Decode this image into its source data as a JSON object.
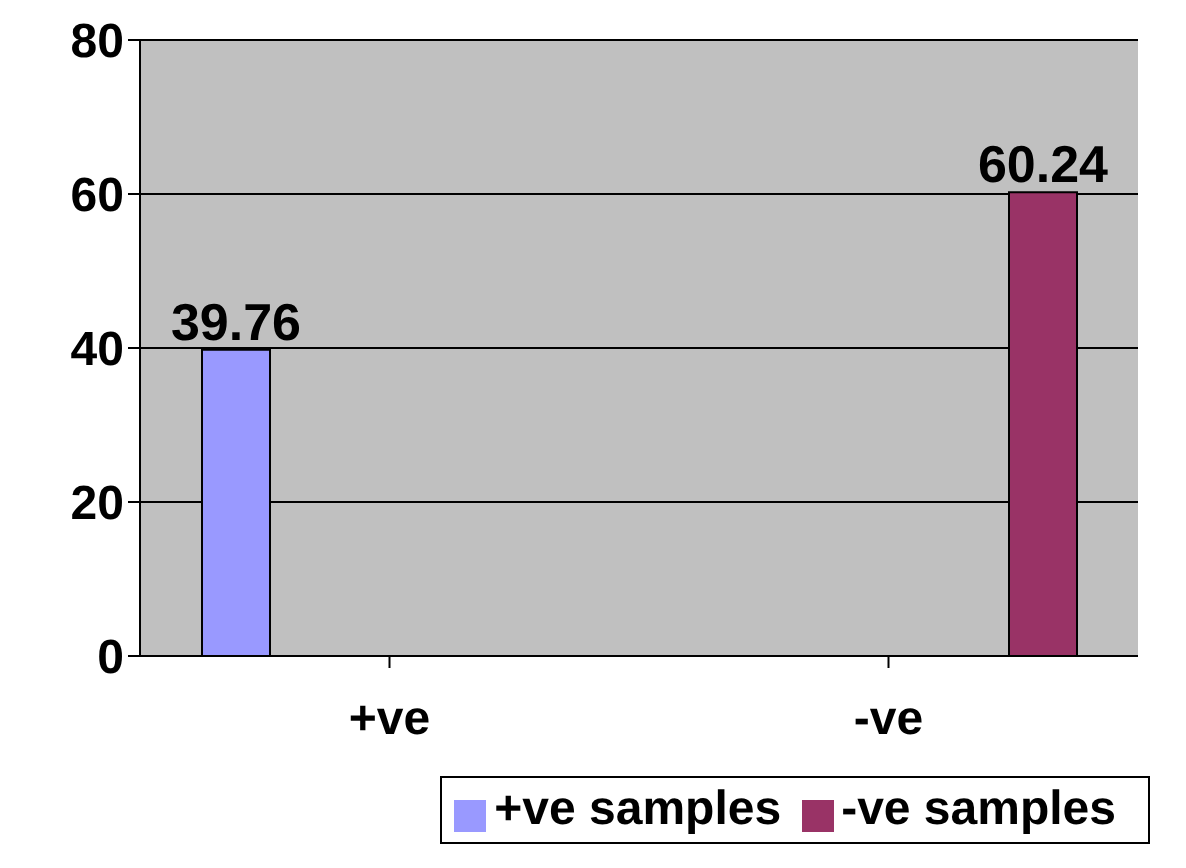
{
  "chart_data": {
    "type": "bar",
    "categories": [
      "+ve",
      "-ve"
    ],
    "series": [
      {
        "name": "+ve samples",
        "color": "#9999ff",
        "values": [
          39.76,
          null
        ]
      },
      {
        "name": "-ve samples",
        "color": "#993366",
        "values": [
          null,
          60.24
        ]
      }
    ],
    "ylim": [
      0,
      80
    ],
    "yticks": [
      0,
      20,
      40,
      60,
      80
    ],
    "grid": "y",
    "data_labels": true,
    "legend": "bottom right"
  }
}
